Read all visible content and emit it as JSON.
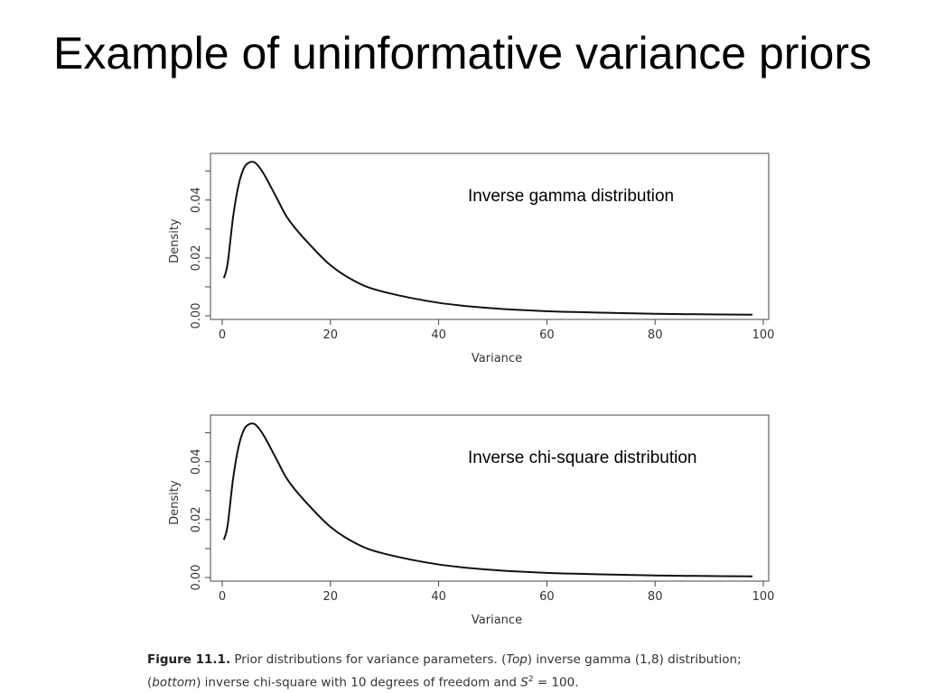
{
  "title": "Example of uninformative variance priors",
  "chart_data": [
    {
      "type": "line",
      "annotation": "Inverse gamma distribution",
      "xlabel": "Variance",
      "ylabel": "Density",
      "xlim": [
        0,
        100
      ],
      "ylim": [
        0,
        0.053
      ],
      "xticks": [
        "0",
        "20",
        "40",
        "60",
        "80",
        "100"
      ],
      "yticks": [
        "0.00",
        "0.02",
        "0.04"
      ],
      "x": [
        0.3,
        1,
        2,
        3,
        4,
        5,
        6,
        7,
        8,
        10,
        12,
        15,
        20,
        25,
        30,
        40,
        50,
        60,
        70,
        80,
        90,
        98
      ],
      "y": [
        0.013,
        0.018,
        0.034,
        0.045,
        0.051,
        0.053,
        0.053,
        0.051,
        0.048,
        0.041,
        0.034,
        0.027,
        0.0175,
        0.0115,
        0.0082,
        0.0045,
        0.0026,
        0.0016,
        0.0011,
        0.0007,
        0.0005,
        0.0004
      ]
    },
    {
      "type": "line",
      "annotation": "Inverse chi-square distribution",
      "xlabel": "Variance",
      "ylabel": "Density",
      "xlim": [
        0,
        100
      ],
      "ylim": [
        0,
        0.053
      ],
      "xticks": [
        "0",
        "20",
        "40",
        "60",
        "80",
        "100"
      ],
      "yticks": [
        "0.00",
        "0.02",
        "0.04"
      ],
      "x": [
        0.3,
        1,
        2,
        3,
        4,
        5,
        6,
        7,
        8,
        10,
        12,
        15,
        20,
        25,
        30,
        40,
        50,
        60,
        70,
        80,
        90,
        98
      ],
      "y": [
        0.013,
        0.018,
        0.034,
        0.045,
        0.051,
        0.053,
        0.053,
        0.051,
        0.048,
        0.041,
        0.034,
        0.027,
        0.0175,
        0.0115,
        0.0082,
        0.0045,
        0.0026,
        0.0016,
        0.0011,
        0.0007,
        0.0005,
        0.0004
      ]
    }
  ],
  "caption": {
    "label": "Figure 11.1.",
    "text_1": " Prior distributions for variance parameters. (",
    "top": "Top",
    "text_2": ") inverse gamma (1,8) distribution; (",
    "bottom": "bottom",
    "text_3": ") inverse chi-square with 10 degrees of freedom and ",
    "s": "S",
    "sup": "2",
    "text_4": " = 100."
  }
}
